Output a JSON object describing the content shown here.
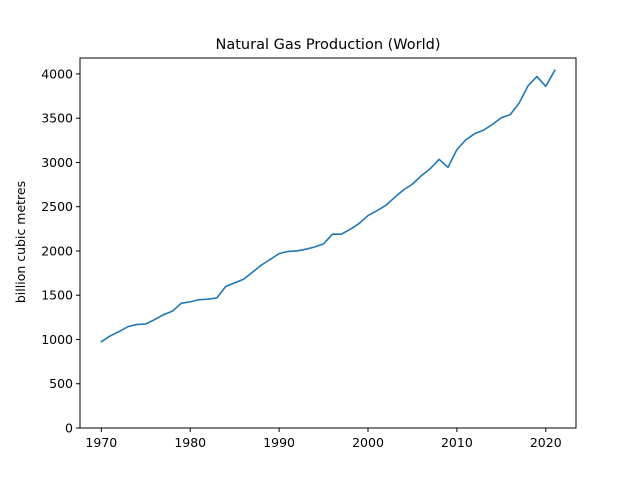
{
  "chart_data": {
    "type": "line",
    "title": "Natural Gas Production (World)",
    "xlabel": "",
    "ylabel": "billion cubic metres",
    "xlim": [
      1967.6,
      2023.4
    ],
    "ylim": [
      0,
      4180
    ],
    "xticks": [
      1970,
      1980,
      1990,
      2000,
      2010,
      2020
    ],
    "yticks": [
      0,
      500,
      1000,
      1500,
      2000,
      2500,
      3000,
      3500,
      4000
    ],
    "grid": false,
    "series": [
      {
        "color": "#1f77b4",
        "x": [
          1970,
          1971,
          1972,
          1973,
          1974,
          1975,
          1976,
          1977,
          1978,
          1979,
          1980,
          1981,
          1982,
          1983,
          1984,
          1985,
          1986,
          1987,
          1988,
          1989,
          1990,
          1991,
          1992,
          1993,
          1994,
          1995,
          1996,
          1997,
          1998,
          1999,
          2000,
          2001,
          2002,
          2003,
          2004,
          2005,
          2006,
          2007,
          2008,
          2009,
          2010,
          2011,
          2012,
          2013,
          2014,
          2015,
          2016,
          2017,
          2018,
          2019,
          2020,
          2021
        ],
        "y": [
          975,
          1040,
          1090,
          1145,
          1170,
          1175,
          1225,
          1280,
          1320,
          1410,
          1425,
          1450,
          1455,
          1470,
          1600,
          1640,
          1680,
          1760,
          1840,
          1905,
          1970,
          1995,
          2000,
          2020,
          2045,
          2080,
          2190,
          2190,
          2245,
          2310,
          2400,
          2455,
          2515,
          2605,
          2690,
          2755,
          2850,
          2930,
          3035,
          2945,
          3145,
          3255,
          3325,
          3365,
          3430,
          3505,
          3540,
          3670,
          3865,
          3970,
          3860,
          4040
        ]
      }
    ]
  }
}
